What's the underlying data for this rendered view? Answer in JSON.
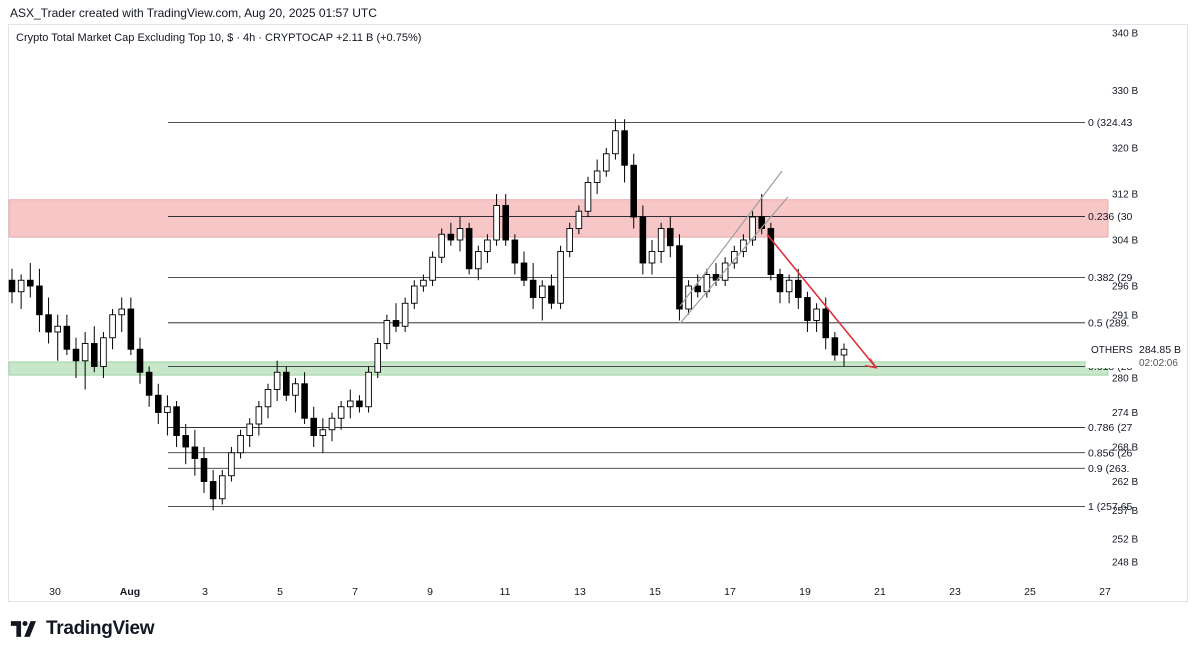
{
  "attribution": "ASX_Trader created with TradingView.com, Aug 20, 2025 01:57 UTC",
  "legend": {
    "symbol": "Crypto Total Market Cap Excluding Top 10, $ · 4h · CRYPTOCAP",
    "change": "+2.11 B (+0.75%)"
  },
  "brand": "TradingView",
  "price_axis": [
    "340 B",
    "330 B",
    "320 B",
    "312 B",
    "304 B",
    "296 B",
    "291 B",
    "286 B",
    "280 B",
    "274 B",
    "268 B",
    "262 B",
    "257 B",
    "252 B",
    "248 B"
  ],
  "time_axis": [
    "30",
    "Aug",
    "3",
    "5",
    "7",
    "9",
    "11",
    "13",
    "15",
    "17",
    "19",
    "21",
    "23",
    "25",
    "27"
  ],
  "fib_levels": [
    {
      "ratio": "0",
      "label": "0 (324.43",
      "price": 324.43
    },
    {
      "ratio": "0.236",
      "label": "0.236 (30",
      "price": 308.1
    },
    {
      "ratio": "0.382",
      "label": "0.382 (29",
      "price": 297.5
    },
    {
      "ratio": "0.5",
      "label": "0.5 (289.",
      "price": 289.6
    },
    {
      "ratio": "0.618",
      "label": "0.618 (28",
      "price": 282.0
    },
    {
      "ratio": "0.786",
      "label": "0.786 (27",
      "price": 271.4
    },
    {
      "ratio": "0.856",
      "label": "0.856 (26",
      "price": 267.0
    },
    {
      "ratio": "0.9",
      "label": "0.9 (263.",
      "price": 264.3
    },
    {
      "ratio": "1",
      "label": "1 (257.65",
      "price": 257.65
    }
  ],
  "zones": {
    "resistance": {
      "from": 304.5,
      "to": 311,
      "color": "#f7c6c7"
    },
    "support": {
      "from": 280.5,
      "to": 282.8,
      "color": "#c8e6c9"
    }
  },
  "price_tag": {
    "symbol": "OTHERS",
    "price": "284.85 B",
    "countdown": "02:02:06",
    "value": 284.85
  },
  "colors": {
    "up": "#ffffff",
    "down": "#000000",
    "wick": "#000000",
    "fib": "#131722",
    "arrow": "#e0303d",
    "channel": "#9e9e9e"
  },
  "chart_data": {
    "type": "candlestick",
    "interval": "4h",
    "y_unit": "B",
    "ylim": [
      244,
      342
    ],
    "x_tick_labels": [
      "30",
      "Aug",
      "3",
      "5",
      "7",
      "9",
      "11",
      "13",
      "15",
      "17",
      "19",
      "21",
      "23",
      "25",
      "27"
    ],
    "candles": [
      {
        "o": 297,
        "h": 299,
        "l": 293,
        "c": 295
      },
      {
        "o": 295,
        "h": 298,
        "l": 292,
        "c": 297
      },
      {
        "o": 297,
        "h": 300,
        "l": 294,
        "c": 296
      },
      {
        "o": 296,
        "h": 299,
        "l": 288,
        "c": 291
      },
      {
        "o": 291,
        "h": 294,
        "l": 286,
        "c": 288
      },
      {
        "o": 288,
        "h": 291,
        "l": 283,
        "c": 289
      },
      {
        "o": 289,
        "h": 291,
        "l": 284,
        "c": 285
      },
      {
        "o": 285,
        "h": 287,
        "l": 280,
        "c": 283
      },
      {
        "o": 283,
        "h": 288,
        "l": 278,
        "c": 286
      },
      {
        "o": 286,
        "h": 289,
        "l": 281,
        "c": 282
      },
      {
        "o": 282,
        "h": 288,
        "l": 280,
        "c": 287
      },
      {
        "o": 287,
        "h": 292,
        "l": 285,
        "c": 291
      },
      {
        "o": 291,
        "h": 294,
        "l": 288,
        "c": 292
      },
      {
        "o": 292,
        "h": 294,
        "l": 284,
        "c": 285
      },
      {
        "o": 285,
        "h": 287,
        "l": 279,
        "c": 281
      },
      {
        "o": 281,
        "h": 282,
        "l": 275,
        "c": 277
      },
      {
        "o": 277,
        "h": 279,
        "l": 272,
        "c": 274
      },
      {
        "o": 274,
        "h": 277,
        "l": 270,
        "c": 275
      },
      {
        "o": 275,
        "h": 276,
        "l": 268,
        "c": 270
      },
      {
        "o": 270,
        "h": 272,
        "l": 265,
        "c": 268
      },
      {
        "o": 268,
        "h": 271,
        "l": 263,
        "c": 266
      },
      {
        "o": 266,
        "h": 268,
        "l": 260,
        "c": 262
      },
      {
        "o": 262,
        "h": 264,
        "l": 257,
        "c": 259
      },
      {
        "o": 259,
        "h": 264,
        "l": 258,
        "c": 263
      },
      {
        "o": 263,
        "h": 268,
        "l": 262,
        "c": 267
      },
      {
        "o": 267,
        "h": 271,
        "l": 266,
        "c": 270
      },
      {
        "o": 270,
        "h": 273,
        "l": 268,
        "c": 272
      },
      {
        "o": 272,
        "h": 276,
        "l": 270,
        "c": 275
      },
      {
        "o": 275,
        "h": 279,
        "l": 273,
        "c": 278
      },
      {
        "o": 278,
        "h": 283,
        "l": 276,
        "c": 281
      },
      {
        "o": 281,
        "h": 282,
        "l": 276,
        "c": 277
      },
      {
        "o": 277,
        "h": 280,
        "l": 274,
        "c": 279
      },
      {
        "o": 279,
        "h": 281,
        "l": 272,
        "c": 273
      },
      {
        "o": 273,
        "h": 275,
        "l": 268,
        "c": 270
      },
      {
        "o": 270,
        "h": 273,
        "l": 267,
        "c": 271
      },
      {
        "o": 271,
        "h": 274,
        "l": 269,
        "c": 273
      },
      {
        "o": 273,
        "h": 276,
        "l": 271,
        "c": 275
      },
      {
        "o": 275,
        "h": 278,
        "l": 273,
        "c": 276
      },
      {
        "o": 276,
        "h": 277,
        "l": 274,
        "c": 275
      },
      {
        "o": 275,
        "h": 282,
        "l": 274,
        "c": 281
      },
      {
        "o": 281,
        "h": 287,
        "l": 280,
        "c": 286
      },
      {
        "o": 286,
        "h": 291,
        "l": 285,
        "c": 290
      },
      {
        "o": 290,
        "h": 293,
        "l": 288,
        "c": 289
      },
      {
        "o": 289,
        "h": 294,
        "l": 288,
        "c": 293
      },
      {
        "o": 293,
        "h": 297,
        "l": 292,
        "c": 296
      },
      {
        "o": 296,
        "h": 298,
        "l": 295,
        "c": 297
      },
      {
        "o": 297,
        "h": 302,
        "l": 296,
        "c": 301
      },
      {
        "o": 301,
        "h": 306,
        "l": 300,
        "c": 305
      },
      {
        "o": 305,
        "h": 307,
        "l": 303,
        "c": 304
      },
      {
        "o": 304,
        "h": 308,
        "l": 302,
        "c": 306
      },
      {
        "o": 306,
        "h": 307,
        "l": 298,
        "c": 299
      },
      {
        "o": 299,
        "h": 303,
        "l": 297,
        "c": 302
      },
      {
        "o": 302,
        "h": 305,
        "l": 300,
        "c": 304
      },
      {
        "o": 304,
        "h": 312,
        "l": 303,
        "c": 310
      },
      {
        "o": 310,
        "h": 312,
        "l": 303,
        "c": 304
      },
      {
        "o": 304,
        "h": 305,
        "l": 298,
        "c": 300
      },
      {
        "o": 300,
        "h": 302,
        "l": 296,
        "c": 297
      },
      {
        "o": 297,
        "h": 300,
        "l": 292,
        "c": 294
      },
      {
        "o": 294,
        "h": 297,
        "l": 290,
        "c": 296
      },
      {
        "o": 296,
        "h": 298,
        "l": 292,
        "c": 293
      },
      {
        "o": 293,
        "h": 303,
        "l": 292,
        "c": 302
      },
      {
        "o": 302,
        "h": 307,
        "l": 301,
        "c": 306
      },
      {
        "o": 306,
        "h": 310,
        "l": 305,
        "c": 309
      },
      {
        "o": 309,
        "h": 315,
        "l": 308,
        "c": 314
      },
      {
        "o": 314,
        "h": 318,
        "l": 312,
        "c": 316
      },
      {
        "o": 316,
        "h": 320,
        "l": 315,
        "c": 319
      },
      {
        "o": 319,
        "h": 325,
        "l": 318,
        "c": 323
      },
      {
        "o": 323,
        "h": 325,
        "l": 314,
        "c": 317
      },
      {
        "o": 317,
        "h": 319,
        "l": 306,
        "c": 308
      },
      {
        "o": 308,
        "h": 310,
        "l": 298,
        "c": 300
      },
      {
        "o": 300,
        "h": 304,
        "l": 298,
        "c": 302
      },
      {
        "o": 302,
        "h": 307,
        "l": 300,
        "c": 306
      },
      {
        "o": 306,
        "h": 308,
        "l": 301,
        "c": 303
      },
      {
        "o": 303,
        "h": 305,
        "l": 290,
        "c": 292
      },
      {
        "o": 292,
        "h": 297,
        "l": 291,
        "c": 296
      },
      {
        "o": 296,
        "h": 298,
        "l": 294,
        "c": 295
      },
      {
        "o": 295,
        "h": 299,
        "l": 294,
        "c": 298
      },
      {
        "o": 298,
        "h": 300,
        "l": 296,
        "c": 297
      },
      {
        "o": 297,
        "h": 301,
        "l": 296,
        "c": 300
      },
      {
        "o": 300,
        "h": 303,
        "l": 299,
        "c": 302
      },
      {
        "o": 302,
        "h": 305,
        "l": 301,
        "c": 304
      },
      {
        "o": 304,
        "h": 309,
        "l": 303,
        "c": 308
      },
      {
        "o": 308,
        "h": 312,
        "l": 305,
        "c": 306
      },
      {
        "o": 306,
        "h": 307,
        "l": 297,
        "c": 298
      },
      {
        "o": 298,
        "h": 299,
        "l": 293,
        "c": 295
      },
      {
        "o": 295,
        "h": 298,
        "l": 293,
        "c": 297
      },
      {
        "o": 297,
        "h": 299,
        "l": 292,
        "c": 294
      },
      {
        "o": 294,
        "h": 295,
        "l": 288,
        "c": 290
      },
      {
        "o": 290,
        "h": 293,
        "l": 288,
        "c": 292
      },
      {
        "o": 292,
        "h": 294,
        "l": 285,
        "c": 287
      },
      {
        "o": 287,
        "h": 288,
        "l": 283,
        "c": 284
      },
      {
        "o": 284,
        "h": 286,
        "l": 282,
        "c": 285
      }
    ]
  }
}
